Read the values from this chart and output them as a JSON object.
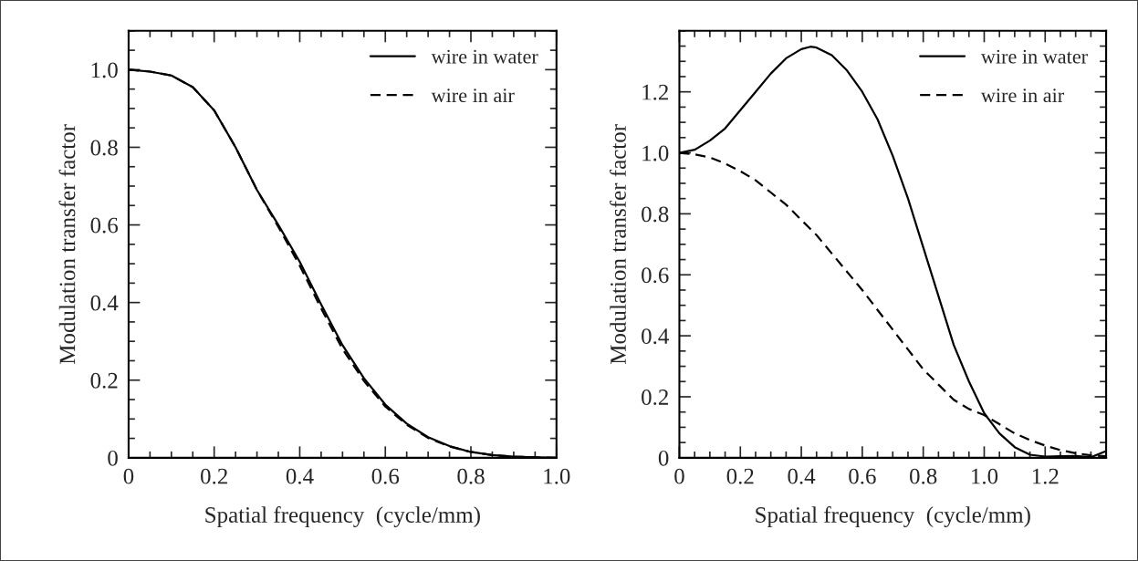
{
  "chart_data": [
    {
      "type": "line",
      "xlabel": "Spatial frequency  (cycle/mm)",
      "ylabel": "Modulation transfer factor",
      "xlim": [
        0,
        1
      ],
      "ylim": [
        0,
        1.1
      ],
      "xticks": [
        0,
        0.2,
        0.4,
        0.6,
        0.8,
        {
          "value": 1,
          "label": "1.0"
        }
      ],
      "yticks": [
        0,
        0.2,
        0.4,
        0.6,
        0.8,
        {
          "value": 1,
          "label": "1.0"
        }
      ],
      "legend": "top right",
      "grid": false,
      "series": [
        {
          "name": "wire in water",
          "color": "#000000",
          "line_style": "solid",
          "x": [
            0,
            0.05,
            0.1,
            0.15,
            0.2,
            0.25,
            0.3,
            0.35,
            0.4,
            0.45,
            0.5,
            0.55,
            0.6,
            0.65,
            0.7,
            0.75,
            0.8,
            0.85,
            0.9,
            0.95,
            1.0
          ],
          "values": [
            1.0,
            0.995,
            0.985,
            0.955,
            0.895,
            0.8,
            0.69,
            0.6,
            0.505,
            0.395,
            0.29,
            0.205,
            0.137,
            0.088,
            0.053,
            0.03,
            0.015,
            0.007,
            0.003,
            0.001,
            0.0
          ]
        },
        {
          "name": "wire in air",
          "color": "#000000",
          "line_style": "dashed",
          "x": [
            0,
            0.05,
            0.1,
            0.15,
            0.2,
            0.25,
            0.3,
            0.35,
            0.4,
            0.45,
            0.5,
            0.55,
            0.6,
            0.65,
            0.7,
            0.75,
            0.8,
            0.85,
            0.9,
            0.95,
            1.0
          ],
          "values": [
            1.0,
            0.995,
            0.985,
            0.955,
            0.895,
            0.8,
            0.69,
            0.595,
            0.495,
            0.385,
            0.28,
            0.198,
            0.132,
            0.085,
            0.051,
            0.029,
            0.015,
            0.007,
            0.003,
            0.001,
            0.0
          ]
        }
      ]
    },
    {
      "type": "line",
      "xlabel": "Spatial frequency  (cycle/mm)",
      "ylabel": "Modulation transfer factor",
      "xlim": [
        0,
        1.4
      ],
      "ylim": [
        0,
        1.4
      ],
      "xticks": [
        0,
        0.2,
        0.4,
        0.6,
        0.8,
        {
          "value": 1,
          "label": "1.0"
        },
        1.2
      ],
      "yticks": [
        0,
        0.2,
        0.4,
        0.6,
        0.8,
        {
          "value": 1,
          "label": "1.0"
        },
        1.2
      ],
      "legend": "top right",
      "grid": false,
      "series": [
        {
          "name": "wire in water",
          "color": "#000000",
          "line_style": "solid",
          "x": [
            0,
            0.05,
            0.1,
            0.15,
            0.2,
            0.25,
            0.3,
            0.35,
            0.4,
            0.43,
            0.45,
            0.5,
            0.55,
            0.6,
            0.65,
            0.7,
            0.75,
            0.8,
            0.85,
            0.9,
            0.95,
            1.0,
            1.05,
            1.1,
            1.15,
            1.2,
            1.25,
            1.3,
            1.35,
            1.4
          ],
          "values": [
            1.0,
            1.01,
            1.04,
            1.08,
            1.14,
            1.2,
            1.26,
            1.31,
            1.34,
            1.348,
            1.345,
            1.32,
            1.27,
            1.2,
            1.11,
            0.99,
            0.85,
            0.69,
            0.53,
            0.37,
            0.25,
            0.146,
            0.08,
            0.035,
            0.01,
            0.004,
            0.005,
            0.006,
            0.002,
            0.022
          ]
        },
        {
          "name": "wire in air",
          "color": "#000000",
          "line_style": "dashed",
          "x": [
            0,
            0.05,
            0.1,
            0.15,
            0.2,
            0.25,
            0.3,
            0.35,
            0.4,
            0.45,
            0.5,
            0.55,
            0.6,
            0.65,
            0.7,
            0.75,
            0.8,
            0.85,
            0.9,
            0.95,
            1.0,
            1.05,
            1.1,
            1.15,
            1.2,
            1.25,
            1.3,
            1.35,
            1.4
          ],
          "values": [
            1.0,
            0.995,
            0.985,
            0.965,
            0.94,
            0.91,
            0.87,
            0.83,
            0.78,
            0.73,
            0.67,
            0.61,
            0.55,
            0.485,
            0.42,
            0.355,
            0.29,
            0.24,
            0.19,
            0.16,
            0.14,
            0.11,
            0.08,
            0.058,
            0.04,
            0.025,
            0.015,
            0.008,
            0.005
          ]
        }
      ]
    }
  ]
}
